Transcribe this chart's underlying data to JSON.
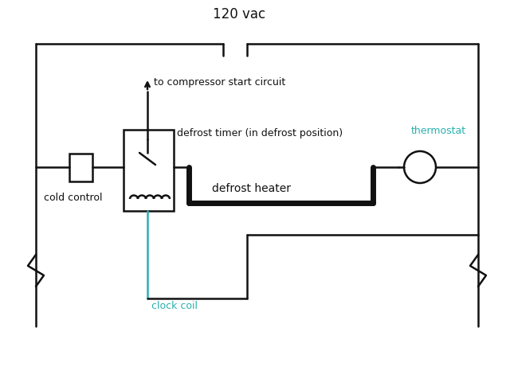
{
  "bg_color": "#ffffff",
  "line_color": "#111111",
  "teal_color": "#2ab0b0",
  "title_text": "120 vac",
  "label_cold_control": "cold control",
  "label_defrost_timer": "defrost timer (in defrost position)",
  "label_defrost_heater": "defrost heater",
  "label_thermostat": "thermostat",
  "label_clock_coil": "clock coil",
  "label_compressor": "to compressor start circuit",
  "lw_thin": 1.8,
  "lw_thick": 5.0,
  "figw": 6.4,
  "figh": 4.8,
  "dpi": 100
}
